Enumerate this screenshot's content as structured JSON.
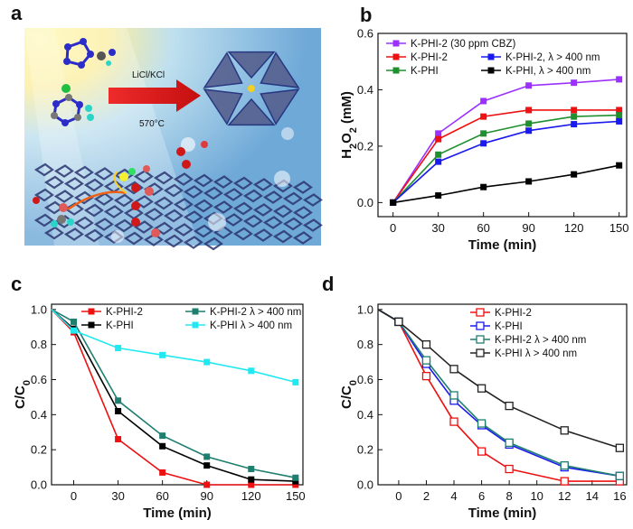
{
  "panels": {
    "a": {
      "letter": "a",
      "arrow_label": "LiCl/KCl",
      "temp_label": "570°C"
    },
    "b": {
      "letter": "b"
    },
    "c": {
      "letter": "c"
    },
    "d": {
      "letter": "d"
    }
  },
  "chart_data": [
    {
      "panel": "b",
      "type": "line",
      "xlabel": "Time (min)",
      "ylabel": "H2O2 (mM)",
      "xlim": [
        -10,
        155
      ],
      "ylim": [
        -0.05,
        0.6
      ],
      "xticks": [
        0,
        30,
        60,
        90,
        120,
        150
      ],
      "yticks": [
        0.0,
        0.2,
        0.4,
        0.6
      ],
      "ytick_labels": [
        "0.0",
        "0.2",
        "0.4",
        "0.6"
      ],
      "x": [
        0,
        30,
        60,
        90,
        120,
        150
      ],
      "series": [
        {
          "name": "K-PHI-2  (30 ppm CBZ)",
          "color": "#9b30ff",
          "values": [
            0,
            0.245,
            0.36,
            0.415,
            0.425,
            0.437
          ]
        },
        {
          "name": "K-PHI-2",
          "color": "#ee1111",
          "values": [
            0,
            0.225,
            0.305,
            0.328,
            0.328,
            0.328
          ]
        },
        {
          "name": "K-PHI",
          "color": "#1f8f2f",
          "values": [
            0,
            0.17,
            0.245,
            0.28,
            0.305,
            0.31
          ]
        },
        {
          "name": "K-PHI-2, λ > 400 nm",
          "color": "#1a1aee",
          "values": [
            0,
            0.145,
            0.21,
            0.255,
            0.278,
            0.288
          ]
        },
        {
          "name": "K-PHI, λ > 400 nm",
          "color": "#000000",
          "values": [
            0,
            0.025,
            0.055,
            0.075,
            0.1,
            0.132
          ]
        }
      ],
      "legend_layout": [
        [
          0
        ],
        [
          1,
          3
        ],
        [
          2,
          4
        ]
      ]
    },
    {
      "panel": "c",
      "type": "line",
      "xlabel": "Time (min)",
      "ylabel": "C/C0",
      "xlim": [
        -15,
        155
      ],
      "ylim": [
        0,
        1.03
      ],
      "xticks": [
        0,
        30,
        60,
        90,
        120,
        150
      ],
      "yticks": [
        0.0,
        0.2,
        0.4,
        0.6,
        0.8,
        1.0
      ],
      "ytick_labels": [
        "0.0",
        "0.2",
        "0.4",
        "0.6",
        "0.8",
        "1.0"
      ],
      "series": [
        {
          "name": "K-PHI-2",
          "color": "#ee1111",
          "x": [
            -15,
            0,
            30,
            60,
            90,
            120,
            150
          ],
          "values": [
            1.0,
            0.87,
            0.26,
            0.07,
            0.0,
            0.0,
            0.0
          ]
        },
        {
          "name": "K-PHI",
          "color": "#000000",
          "x": [
            -15,
            0,
            30,
            60,
            90,
            120,
            150
          ],
          "values": [
            1.0,
            0.89,
            0.42,
            0.22,
            0.11,
            0.03,
            0.02
          ]
        },
        {
          "name": "K-PHI-2  λ > 400 nm",
          "color": "#1f7f6f",
          "x": [
            -15,
            0,
            30,
            60,
            90,
            120,
            150
          ],
          "values": [
            1.0,
            0.93,
            0.48,
            0.28,
            0.16,
            0.09,
            0.04
          ]
        },
        {
          "name": "K-PHI  λ > 400 nm",
          "color": "#22e8f2",
          "x": [
            -15,
            0,
            30,
            60,
            90,
            120,
            150
          ],
          "values": [
            1.0,
            0.88,
            0.78,
            0.74,
            0.7,
            0.65,
            0.585
          ]
        }
      ],
      "legend_layout": [
        [
          0,
          2
        ],
        [
          1,
          3
        ]
      ]
    },
    {
      "panel": "d",
      "type": "line",
      "xlabel": "Time (min)",
      "ylabel": "C/C0",
      "xlim": [
        -1.5,
        16.5
      ],
      "ylim": [
        0,
        1.03
      ],
      "xticks": [
        0,
        2,
        4,
        6,
        8,
        10,
        12,
        14,
        16
      ],
      "yticks": [
        0.0,
        0.2,
        0.4,
        0.6,
        0.8,
        1.0
      ],
      "ytick_labels": [
        "0.0",
        "0.2",
        "0.4",
        "0.6",
        "0.8",
        "1.0"
      ],
      "series": [
        {
          "name": "K-PHI-2",
          "color": "#ee1111",
          "x": [
            -1.5,
            0,
            2,
            4,
            6,
            8,
            12,
            16
          ],
          "values": [
            1.0,
            0.93,
            0.62,
            0.36,
            0.19,
            0.09,
            0.02,
            0.02
          ]
        },
        {
          "name": "K-PHI",
          "color": "#1a1aee",
          "x": [
            -1.5,
            0,
            2,
            4,
            6,
            8,
            12,
            16
          ],
          "values": [
            1.0,
            0.93,
            0.69,
            0.48,
            0.34,
            0.23,
            0.1,
            0.05
          ]
        },
        {
          "name": "K-PHI-2  λ > 400 nm",
          "color": "#1f7f6f",
          "x": [
            -1.5,
            0,
            2,
            4,
            6,
            8,
            12,
            16
          ],
          "values": [
            1.0,
            0.93,
            0.71,
            0.51,
            0.35,
            0.24,
            0.11,
            0.05
          ]
        },
        {
          "name": "K-PHI  λ > 400 nm",
          "color": "#222222",
          "x": [
            -1.5,
            0,
            2,
            4,
            6,
            8,
            12,
            16
          ],
          "values": [
            1.0,
            0.93,
            0.8,
            0.66,
            0.55,
            0.45,
            0.31,
            0.21
          ]
        }
      ],
      "legend_layout": [
        [
          0
        ],
        [
          1
        ],
        [
          2
        ],
        [
          3
        ]
      ]
    }
  ]
}
